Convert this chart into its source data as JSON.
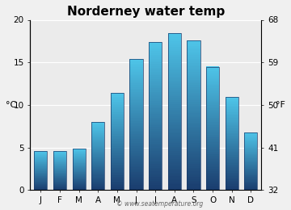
{
  "title": "Norderney water temp",
  "months": [
    "J",
    "F",
    "M",
    "A",
    "M",
    "J",
    "J",
    "A",
    "S",
    "O",
    "N",
    "D"
  ],
  "temps_c": [
    4.6,
    4.6,
    4.9,
    8.0,
    11.4,
    15.4,
    17.4,
    18.4,
    17.6,
    14.5,
    10.9,
    6.8
  ],
  "ylabel_left": "°C",
  "ylabel_right": "°F",
  "yticks_c": [
    0,
    5,
    10,
    15,
    20
  ],
  "yticks_f": [
    32,
    41,
    50,
    59,
    68
  ],
  "ylim": [
    0,
    20
  ],
  "plot_bg_color": "#ebebeb",
  "fig_bg_color": "#f0f0f0",
  "bar_color_top": "#4ec4e8",
  "bar_color_bottom": "#1a3d6e",
  "bar_edge_color": "#1a3a6a",
  "watermark": "© www.seatemperature.org",
  "title_fontsize": 11,
  "tick_fontsize": 7.5,
  "label_fontsize": 8
}
